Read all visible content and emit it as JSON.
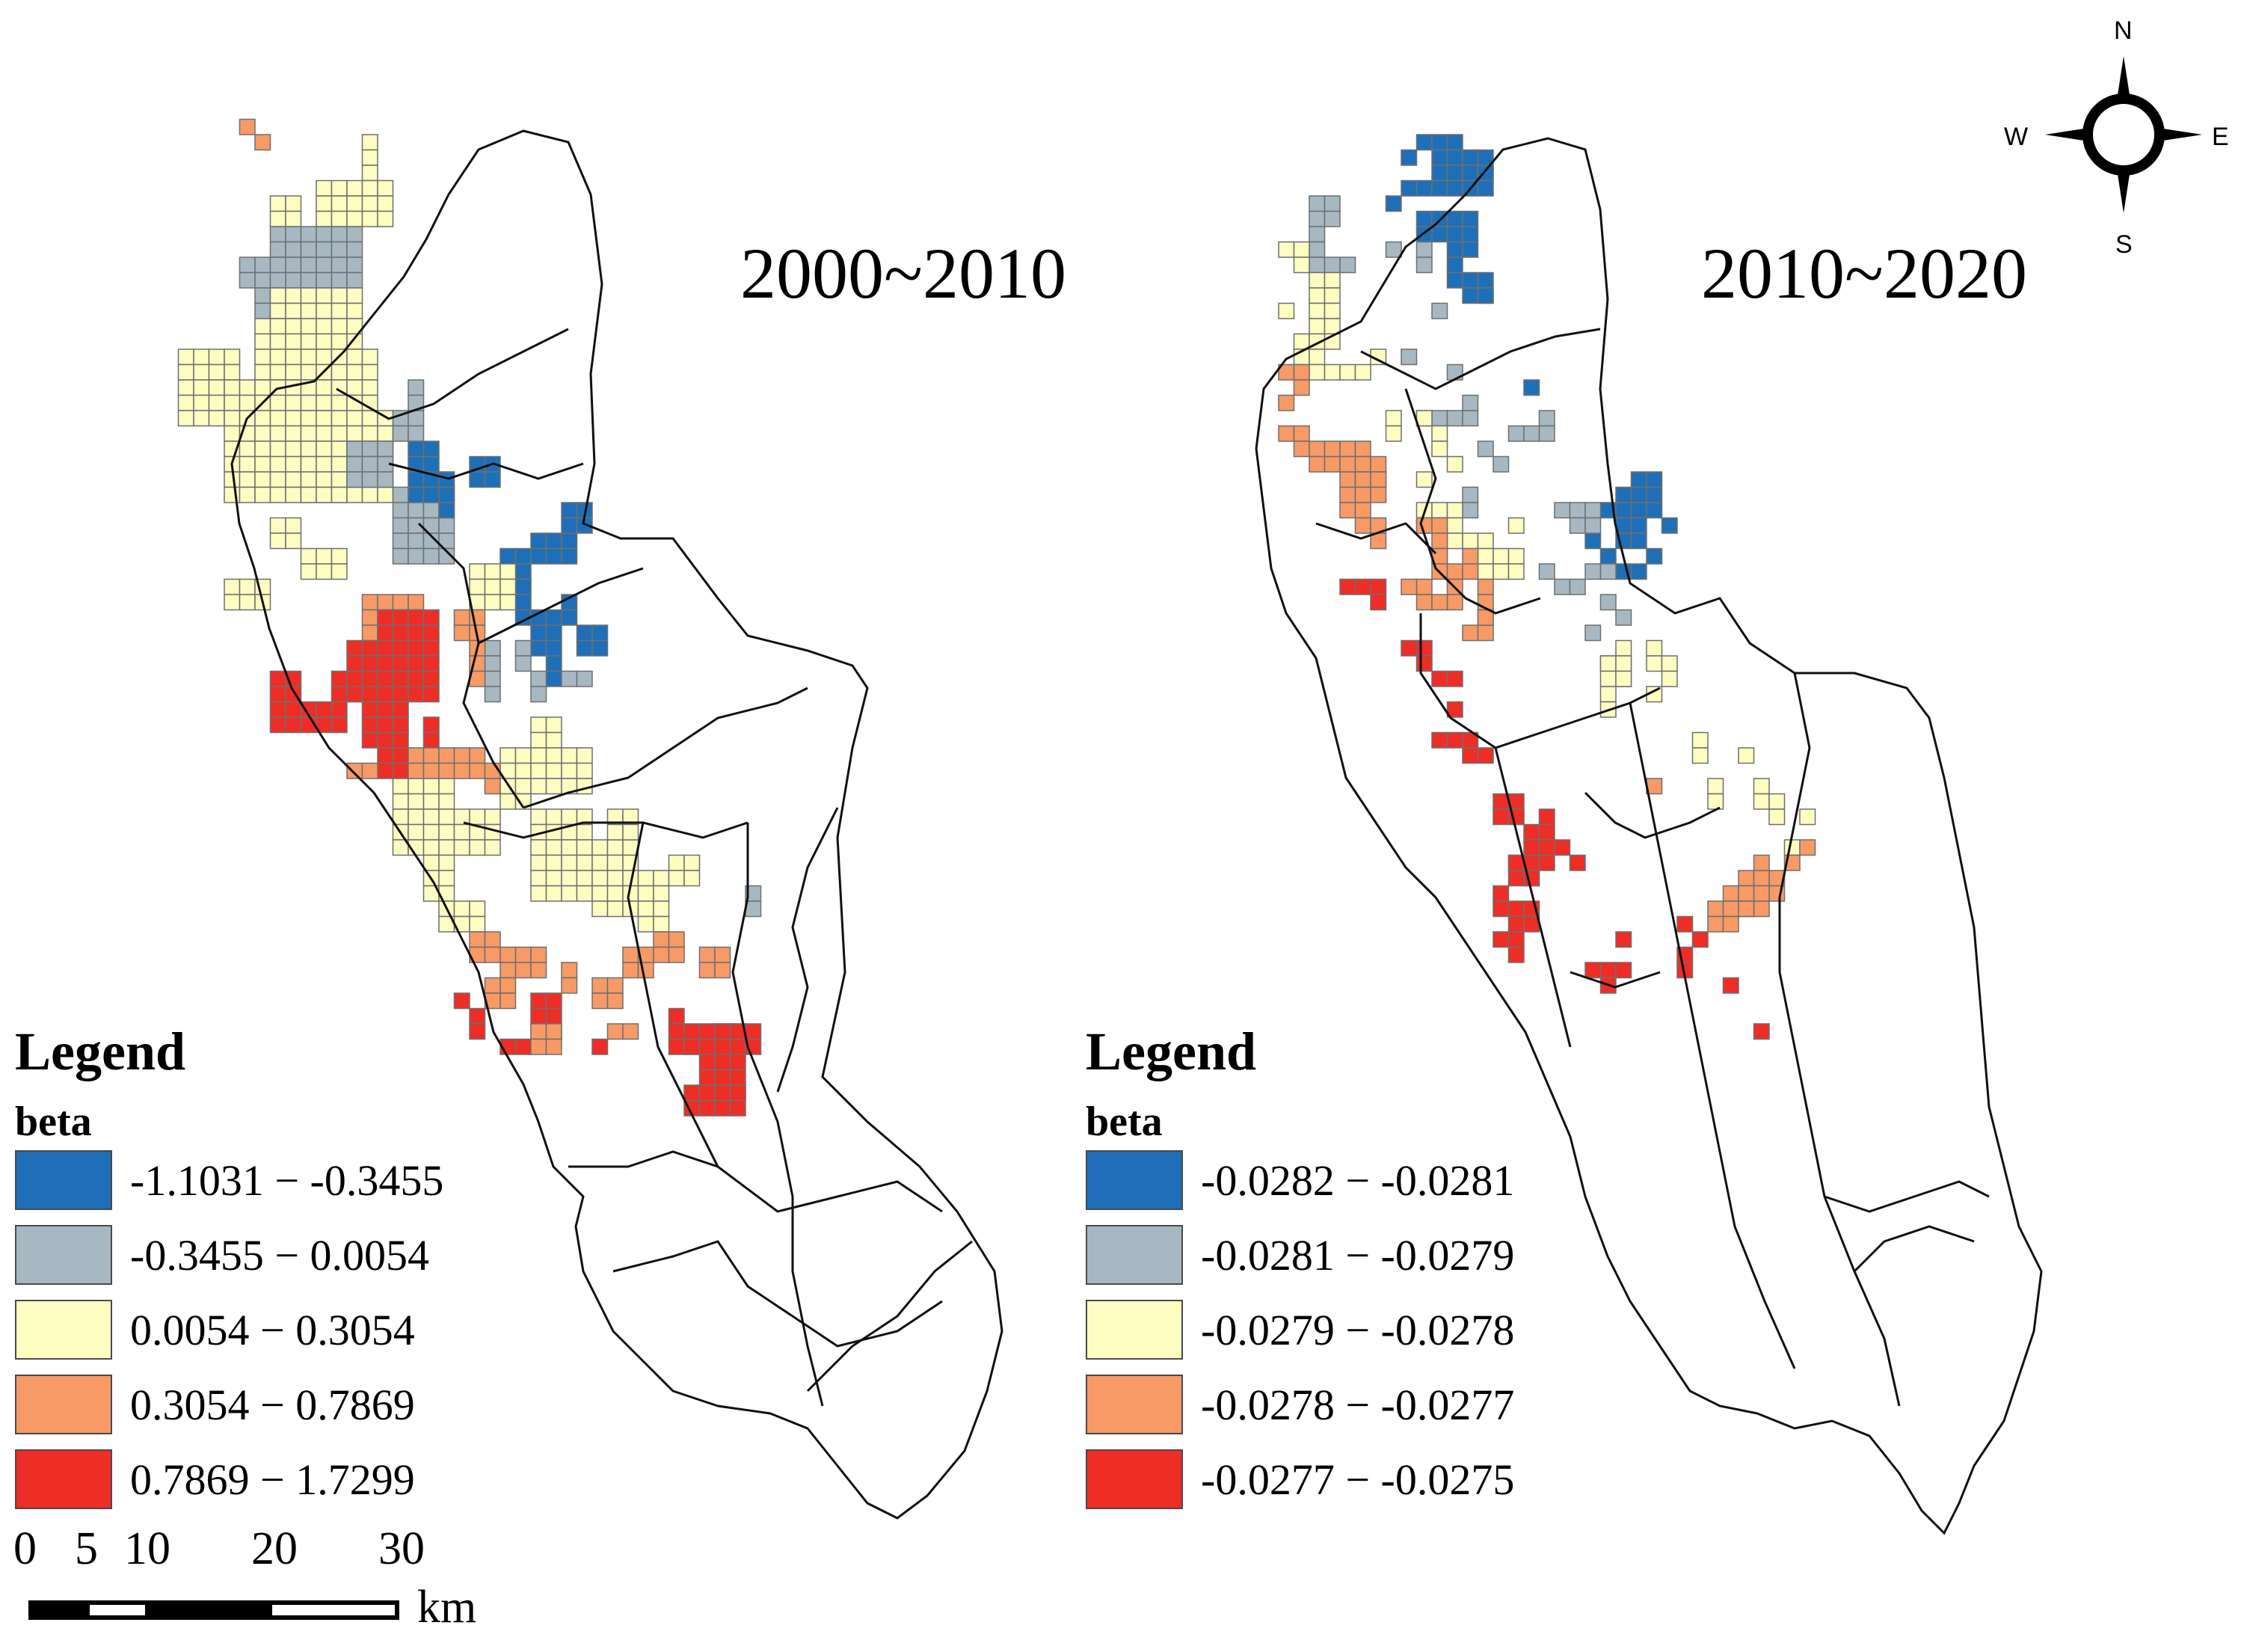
{
  "maps": [
    {
      "id": "left",
      "title": "2000~2010",
      "legend": {
        "title": "Legend",
        "field": "beta",
        "classes": [
          {
            "label": "-1.1031 − -0.3455",
            "color": "#1f6fb8"
          },
          {
            "label": "-0.3455 − 0.0054",
            "color": "#a7b8c2"
          },
          {
            "label": "0.0054 − 0.3054",
            "color": "#fdfdc2"
          },
          {
            "label": "0.3054 − 0.7869",
            "color": "#f79a66"
          },
          {
            "label": "0.7869 − 1.7299",
            "color": "#ee2d26"
          }
        ]
      }
    },
    {
      "id": "right",
      "title": "2010~2020",
      "legend": {
        "title": "Legend",
        "field": "beta",
        "classes": [
          {
            "label": "-0.0282 − -0.0281",
            "color": "#1f6fb8"
          },
          {
            "label": "-0.0281 − -0.0279",
            "color": "#a7b8c2"
          },
          {
            "label": "-0.0279 − -0.0278",
            "color": "#fdfdc2"
          },
          {
            "label": "-0.0278 − -0.0277",
            "color": "#f79a66"
          },
          {
            "label": "-0.0277 − -0.0275",
            "color": "#ee2d26"
          }
        ]
      }
    }
  ],
  "scale_bar": {
    "ticks": [
      "0",
      "5",
      "10",
      "20",
      "30"
    ],
    "unit": "km"
  },
  "north_arrow": {
    "n": "N",
    "s": "S",
    "e": "E",
    "w": "W"
  }
}
